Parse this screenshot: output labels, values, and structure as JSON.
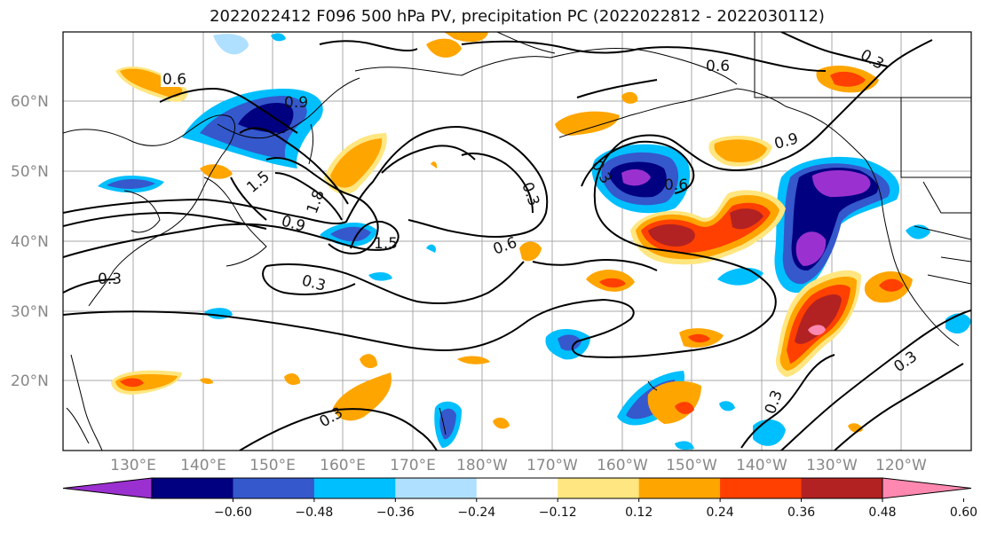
{
  "title": "2022022412 F096 500 hPa PV, precipitation PC (2022022812 - 2022030112)",
  "lat_labels": [
    "60°N",
    "50°N",
    "40°N",
    "30°N",
    "20°N"
  ],
  "lon_labels": [
    "130°E",
    "140°E",
    "150°E",
    "160°E",
    "170°E",
    "180°W",
    "170°W",
    "160°W",
    "150°W",
    "140°W",
    "130°W",
    "120°W"
  ],
  "colorbar": {
    "ticks": [
      "−0.60",
      "−0.48",
      "−0.36",
      "−0.24",
      "−0.12",
      "0.12",
      "0.24",
      "0.36",
      "0.48",
      "0.60"
    ],
    "colors": [
      "#9b30d0",
      "#000080",
      "#3558cc",
      "#00bfff",
      "#b0e0ff",
      "#ffffff",
      "#ffe680",
      "#ffa500",
      "#ff4000",
      "#b22222",
      "#ff88b0"
    ]
  },
  "contour_labels": [
    "0.6",
    "0.9",
    "1.5",
    "1.8",
    "1.5",
    "0.9",
    "0.3",
    "0.3",
    "0.3",
    "0.6",
    "0.3",
    "0.6",
    "0.9",
    "0.6",
    "0.3",
    "0.3",
    "0.3",
    "0.3"
  ]
}
